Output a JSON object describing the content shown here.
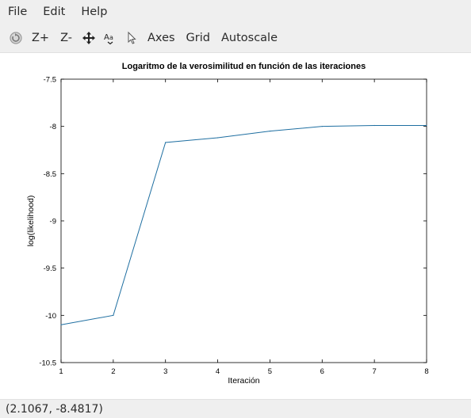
{
  "menubar": {
    "items": [
      {
        "label": "File"
      },
      {
        "label": "Edit"
      },
      {
        "label": "Help"
      }
    ]
  },
  "toolbar": {
    "rotate_icon": "rotate-icon",
    "zoom_in_label": "Z+",
    "zoom_out_label": "Z-",
    "pan_icon": "pan-icon",
    "text_icon": "text-icon",
    "select_icon": "pointer-icon",
    "axes_label": "Axes",
    "grid_label": "Grid",
    "autoscale_label": "Autoscale"
  },
  "status": {
    "coordinates": "(2.1067, -8.4817)"
  },
  "chart_data": {
    "type": "line",
    "title": "Logaritmo de la verosimilitud en función de las iteraciones",
    "xlabel": "Iteración",
    "ylabel": "log(likelihood)",
    "xlim": [
      1,
      8
    ],
    "ylim": [
      -10.5,
      -7.5
    ],
    "xticks": [
      1,
      2,
      3,
      4,
      5,
      6,
      7,
      8
    ],
    "yticks": [
      -7.5,
      -8,
      -8.5,
      -9,
      -9.5,
      -10,
      -10.5
    ],
    "grid": false,
    "series": [
      {
        "color": "#1f6fa1",
        "x": [
          1,
          2,
          3,
          4,
          5,
          6,
          7,
          8
        ],
        "y": [
          -10.1,
          -10.0,
          -8.17,
          -8.12,
          -8.05,
          -8.0,
          -7.99,
          -7.99
        ]
      }
    ]
  }
}
